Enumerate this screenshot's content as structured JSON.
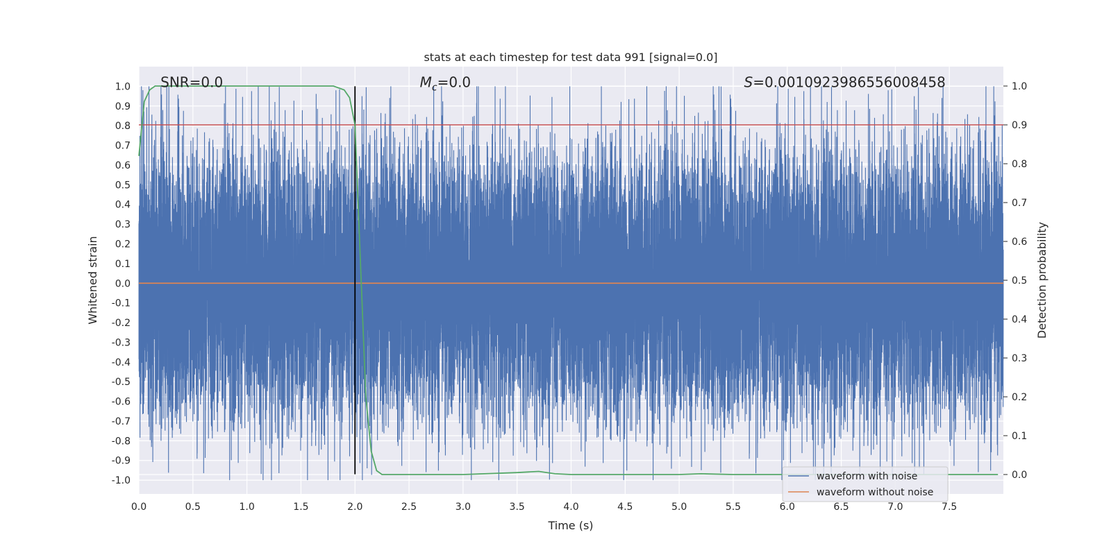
{
  "chart_data": {
    "type": "line",
    "title": "stats at each timestep for test data 991 [signal=0.0]",
    "xlabel": "Time (s)",
    "ylabel": "Whitened strain",
    "ylabel_right": "Detection probability",
    "xlim": [
      0.0,
      8.0
    ],
    "ylim": [
      -1.07,
      1.1
    ],
    "ylim_right": [
      -0.05,
      1.05
    ],
    "x_ticks": [
      "0.0",
      "0.5",
      "1.0",
      "1.5",
      "2.0",
      "2.5",
      "3.0",
      "3.5",
      "4.0",
      "4.5",
      "5.0",
      "5.5",
      "6.0",
      "6.5",
      "7.0",
      "7.5"
    ],
    "y_ticks": [
      "1.0",
      "0.9",
      "0.8",
      "0.7",
      "0.6",
      "0.5",
      "0.4",
      "0.3",
      "0.2",
      "0.1",
      "0.0",
      "-0.1",
      "-0.2",
      "-0.3",
      "-0.4",
      "-0.5",
      "-0.6",
      "-0.7",
      "-0.8",
      "-0.9",
      "-1.0"
    ],
    "y_ticks_right": [
      "1.0",
      "0.9",
      "0.8",
      "0.7",
      "0.6",
      "0.5",
      "0.4",
      "0.3",
      "0.2",
      "0.1",
      "0.0"
    ],
    "annotations": [
      {
        "text": "SNR=0.0",
        "x": 0.2,
        "y": 1.02
      },
      {
        "text_prefix": "M",
        "text_sub": "c",
        "text_suffix": "=0.0",
        "x": 2.6,
        "y": 1.02
      },
      {
        "text_prefix": "S",
        "text_suffix": "=0.0010923986556008458",
        "x": 5.6,
        "y": 1.02
      }
    ],
    "threshold": {
      "axis": "right",
      "value": 0.9,
      "color": "#c44e52"
    },
    "vline": {
      "x": 2.0,
      "y_range": [
        -0.97,
        1.0
      ],
      "color": "#000000"
    },
    "series": [
      {
        "name": "waveform with noise",
        "axis": "left",
        "color": "#4c72b0",
        "style": "dense-noise",
        "sample_rate_hz": 2048,
        "duration_s": 8.0,
        "typical_amplitude": 0.5,
        "peak_amplitude": 1.0
      },
      {
        "name": "waveform without noise",
        "axis": "left",
        "color": "#dd8452",
        "x": [
          0.0,
          8.0
        ],
        "y": [
          0.0,
          0.0
        ]
      },
      {
        "name": "Detection probability",
        "axis": "right",
        "color": "#55a868",
        "x": [
          0.0,
          0.05,
          0.1,
          0.15,
          0.2,
          0.5,
          1.0,
          1.5,
          1.8,
          1.9,
          1.95,
          2.0,
          2.05,
          2.1,
          2.15,
          2.2,
          2.25,
          2.5,
          3.0,
          3.5,
          3.7,
          3.85,
          4.0,
          4.5,
          5.0,
          5.2,
          5.5,
          6.0,
          6.5,
          7.0,
          7.5,
          7.95
        ],
        "y": [
          0.82,
          0.96,
          0.99,
          1.0,
          1.0,
          1.0,
          1.0,
          1.0,
          1.0,
          0.99,
          0.97,
          0.9,
          0.55,
          0.2,
          0.06,
          0.01,
          0.0,
          0.0,
          0.0,
          0.005,
          0.008,
          0.002,
          0.0,
          0.0,
          0.0,
          0.002,
          0.0,
          0.0,
          0.0,
          0.0,
          0.0,
          0.0
        ]
      }
    ],
    "legend": {
      "placement": "bottom-right",
      "entries": [
        {
          "label": "waveform with noise",
          "color": "#4c72b0"
        },
        {
          "label": "waveform without noise",
          "color": "#dd8452"
        }
      ]
    },
    "grid": true,
    "style": {
      "plot_bg": "#eaeaf2",
      "grid_color": "#ffffff"
    }
  }
}
